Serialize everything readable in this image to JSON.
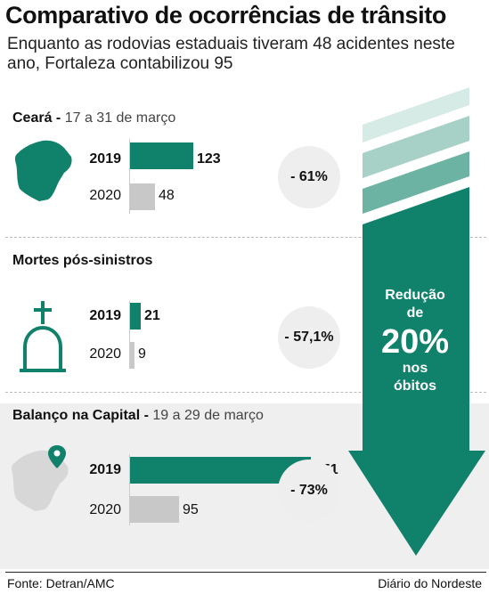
{
  "header": {
    "title": "Comparativo de ocorrências de trânsito",
    "subtitle": "Enquanto as rodovias estaduais tiveram 48 acidentes neste ano, Fortaleza contabilizou 95"
  },
  "colors": {
    "accent": "#10816a",
    "gray_bar": "#c8c8c8",
    "arrow_light": "#d6ebe6",
    "arrow_mid": "#a7d0c6",
    "arrow_dark": "#6db3a3"
  },
  "chart_data": [
    {
      "type": "bar",
      "title": "Ceará",
      "subtitle": "17 a 31 de março",
      "categories": [
        "2019",
        "2020"
      ],
      "values": [
        123,
        48
      ],
      "change": "- 61%"
    },
    {
      "type": "bar",
      "title": "Mortes pós-sinistros",
      "subtitle": "",
      "categories": [
        "2019",
        "2020"
      ],
      "values": [
        21,
        9
      ],
      "change": "- 57,1%"
    },
    {
      "type": "bar",
      "title": "Balanço na Capital",
      "subtitle": "19 a 29 de março",
      "categories": [
        "2019",
        "2020"
      ],
      "values": [
        351,
        95
      ],
      "change": "- 73%"
    }
  ],
  "arrow": {
    "line1": "Redução",
    "line2": "de",
    "big": "20%",
    "line3": "nos",
    "line4": "óbitos"
  },
  "footer": {
    "source": "Fonte: Detran/AMC",
    "credit": "Diário do Nordeste"
  }
}
